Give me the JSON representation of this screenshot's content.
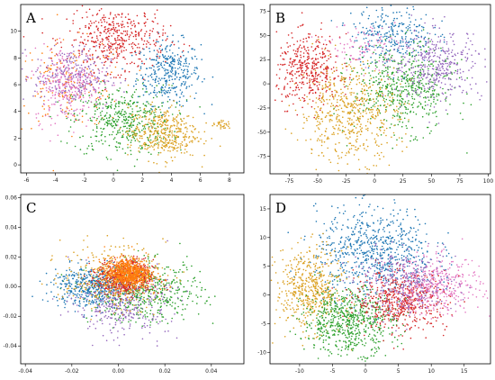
{
  "chart_data": [
    {
      "panel": "A",
      "type": "scatter",
      "title": "",
      "xlabel": "",
      "ylabel": "",
      "xlim": [
        -6.4,
        9.0
      ],
      "ylim": [
        -0.6,
        12.0
      ],
      "xticks": [
        -6,
        -4,
        -2,
        0,
        2,
        4,
        6,
        8
      ],
      "yticks": [
        0,
        2,
        4,
        6,
        8,
        10
      ],
      "grid": false,
      "clusters": [
        {
          "color": "#1f77b4",
          "center": [
            3.8,
            6.9
          ],
          "spread": [
            1.1,
            1.2
          ],
          "count": 350
        },
        {
          "color": "#ff7f0e",
          "center": [
            -3.0,
            6.0
          ],
          "spread": [
            2.0,
            1.6
          ],
          "count": 180
        },
        {
          "color": "#2ca02c",
          "center": [
            0.6,
            3.3
          ],
          "spread": [
            1.7,
            1.3
          ],
          "count": 450
        },
        {
          "color": "#d62728",
          "center": [
            0.2,
            9.4
          ],
          "spread": [
            1.7,
            1.2
          ],
          "count": 450
        },
        {
          "color": "#9467bd",
          "center": [
            -2.9,
            6.6
          ],
          "spread": [
            1.3,
            1.1
          ],
          "count": 280
        },
        {
          "color": "#e377c2",
          "center": [
            -3.1,
            6.0
          ],
          "spread": [
            1.2,
            1.4
          ],
          "count": 280
        },
        {
          "color": "#dba020",
          "center": [
            3.4,
            2.4
          ],
          "spread": [
            1.2,
            1.0
          ],
          "count": 400
        },
        {
          "color": "#dba020",
          "center": [
            7.5,
            3.0
          ],
          "spread": [
            0.3,
            0.15
          ],
          "count": 30
        }
      ]
    },
    {
      "panel": "B",
      "type": "scatter",
      "title": "",
      "xlabel": "",
      "ylabel": "",
      "xlim": [
        -92,
        102
      ],
      "ylim": [
        -93,
        82
      ],
      "xticks": [
        -75,
        -50,
        -25,
        0,
        25,
        50,
        75,
        100
      ],
      "yticks": [
        -75,
        -50,
        -25,
        0,
        25,
        50,
        75
      ],
      "grid": false,
      "clusters": [
        {
          "color": "#1f77b4",
          "center": [
            15,
            52
          ],
          "spread": [
            18,
            15
          ],
          "count": 280
        },
        {
          "color": "#d62728",
          "center": [
            -58,
            14
          ],
          "spread": [
            14,
            18
          ],
          "count": 400
        },
        {
          "color": "#2ca02c",
          "center": [
            25,
            -5
          ],
          "spread": [
            22,
            22
          ],
          "count": 550
        },
        {
          "color": "#dba020",
          "center": [
            -22,
            -30
          ],
          "spread": [
            22,
            25
          ],
          "count": 550
        },
        {
          "color": "#9467bd",
          "center": [
            55,
            20
          ],
          "spread": [
            20,
            18
          ],
          "count": 380
        },
        {
          "color": "#e377c2",
          "center": [
            -10,
            38
          ],
          "spread": [
            15,
            12
          ],
          "count": 100
        }
      ]
    },
    {
      "panel": "C",
      "type": "scatter",
      "title": "",
      "xlabel": "",
      "ylabel": "",
      "xlim": [
        -0.042,
        0.054
      ],
      "ylim": [
        -0.052,
        0.062
      ],
      "xticks": [
        -0.04,
        -0.02,
        0.0,
        0.02,
        0.04
      ],
      "yticks": [
        -0.04,
        -0.02,
        0.0,
        0.02,
        0.04,
        0.06
      ],
      "grid": false,
      "clusters": [
        {
          "color": "#2ca02c",
          "center": [
            0.012,
            -0.004
          ],
          "spread": [
            0.012,
            0.01
          ],
          "count": 500
        },
        {
          "color": "#1f77b4",
          "center": [
            -0.012,
            0.0
          ],
          "spread": [
            0.008,
            0.007
          ],
          "count": 450
        },
        {
          "color": "#9467bd",
          "center": [
            0.002,
            -0.012
          ],
          "spread": [
            0.01,
            0.01
          ],
          "count": 350
        },
        {
          "color": "#dba020",
          "center": [
            -0.002,
            0.006
          ],
          "spread": [
            0.011,
            0.011
          ],
          "count": 350
        },
        {
          "color": "#d62728",
          "center": [
            0.003,
            0.006
          ],
          "spread": [
            0.006,
            0.006
          ],
          "count": 500
        },
        {
          "color": "#ff7f0e",
          "center": [
            0.004,
            0.009
          ],
          "spread": [
            0.005,
            0.005
          ],
          "count": 700
        }
      ]
    },
    {
      "panel": "D",
      "type": "scatter",
      "title": "",
      "xlabel": "",
      "ylabel": "",
      "xlim": [
        -14.5,
        19.0
      ],
      "ylim": [
        -12.0,
        17.5
      ],
      "xticks": [
        -10,
        -5,
        0,
        5,
        10,
        15
      ],
      "yticks": [
        -10,
        -5,
        0,
        5,
        10,
        15
      ],
      "grid": false,
      "clusters": [
        {
          "color": "#1f77b4",
          "center": [
            1.5,
            7.5
          ],
          "spread": [
            4.5,
            3.8
          ],
          "count": 700
        },
        {
          "color": "#dba020",
          "center": [
            -8.5,
            1.0
          ],
          "spread": [
            2.5,
            3.5
          ],
          "count": 500
        },
        {
          "color": "#2ca02c",
          "center": [
            -2.5,
            -4.5
          ],
          "spread": [
            3.5,
            2.8
          ],
          "count": 650
        },
        {
          "color": "#d62728",
          "center": [
            5.5,
            -1.0
          ],
          "spread": [
            3.5,
            2.5
          ],
          "count": 550
        },
        {
          "color": "#e377c2",
          "center": [
            10.5,
            1.5
          ],
          "spread": [
            3.5,
            2.5
          ],
          "count": 400
        },
        {
          "color": "#9467bd",
          "center": [
            6.0,
            2.0
          ],
          "spread": [
            4.0,
            2.8
          ],
          "count": 300
        }
      ]
    }
  ],
  "panel_labels": [
    "A",
    "B",
    "C",
    "D"
  ]
}
